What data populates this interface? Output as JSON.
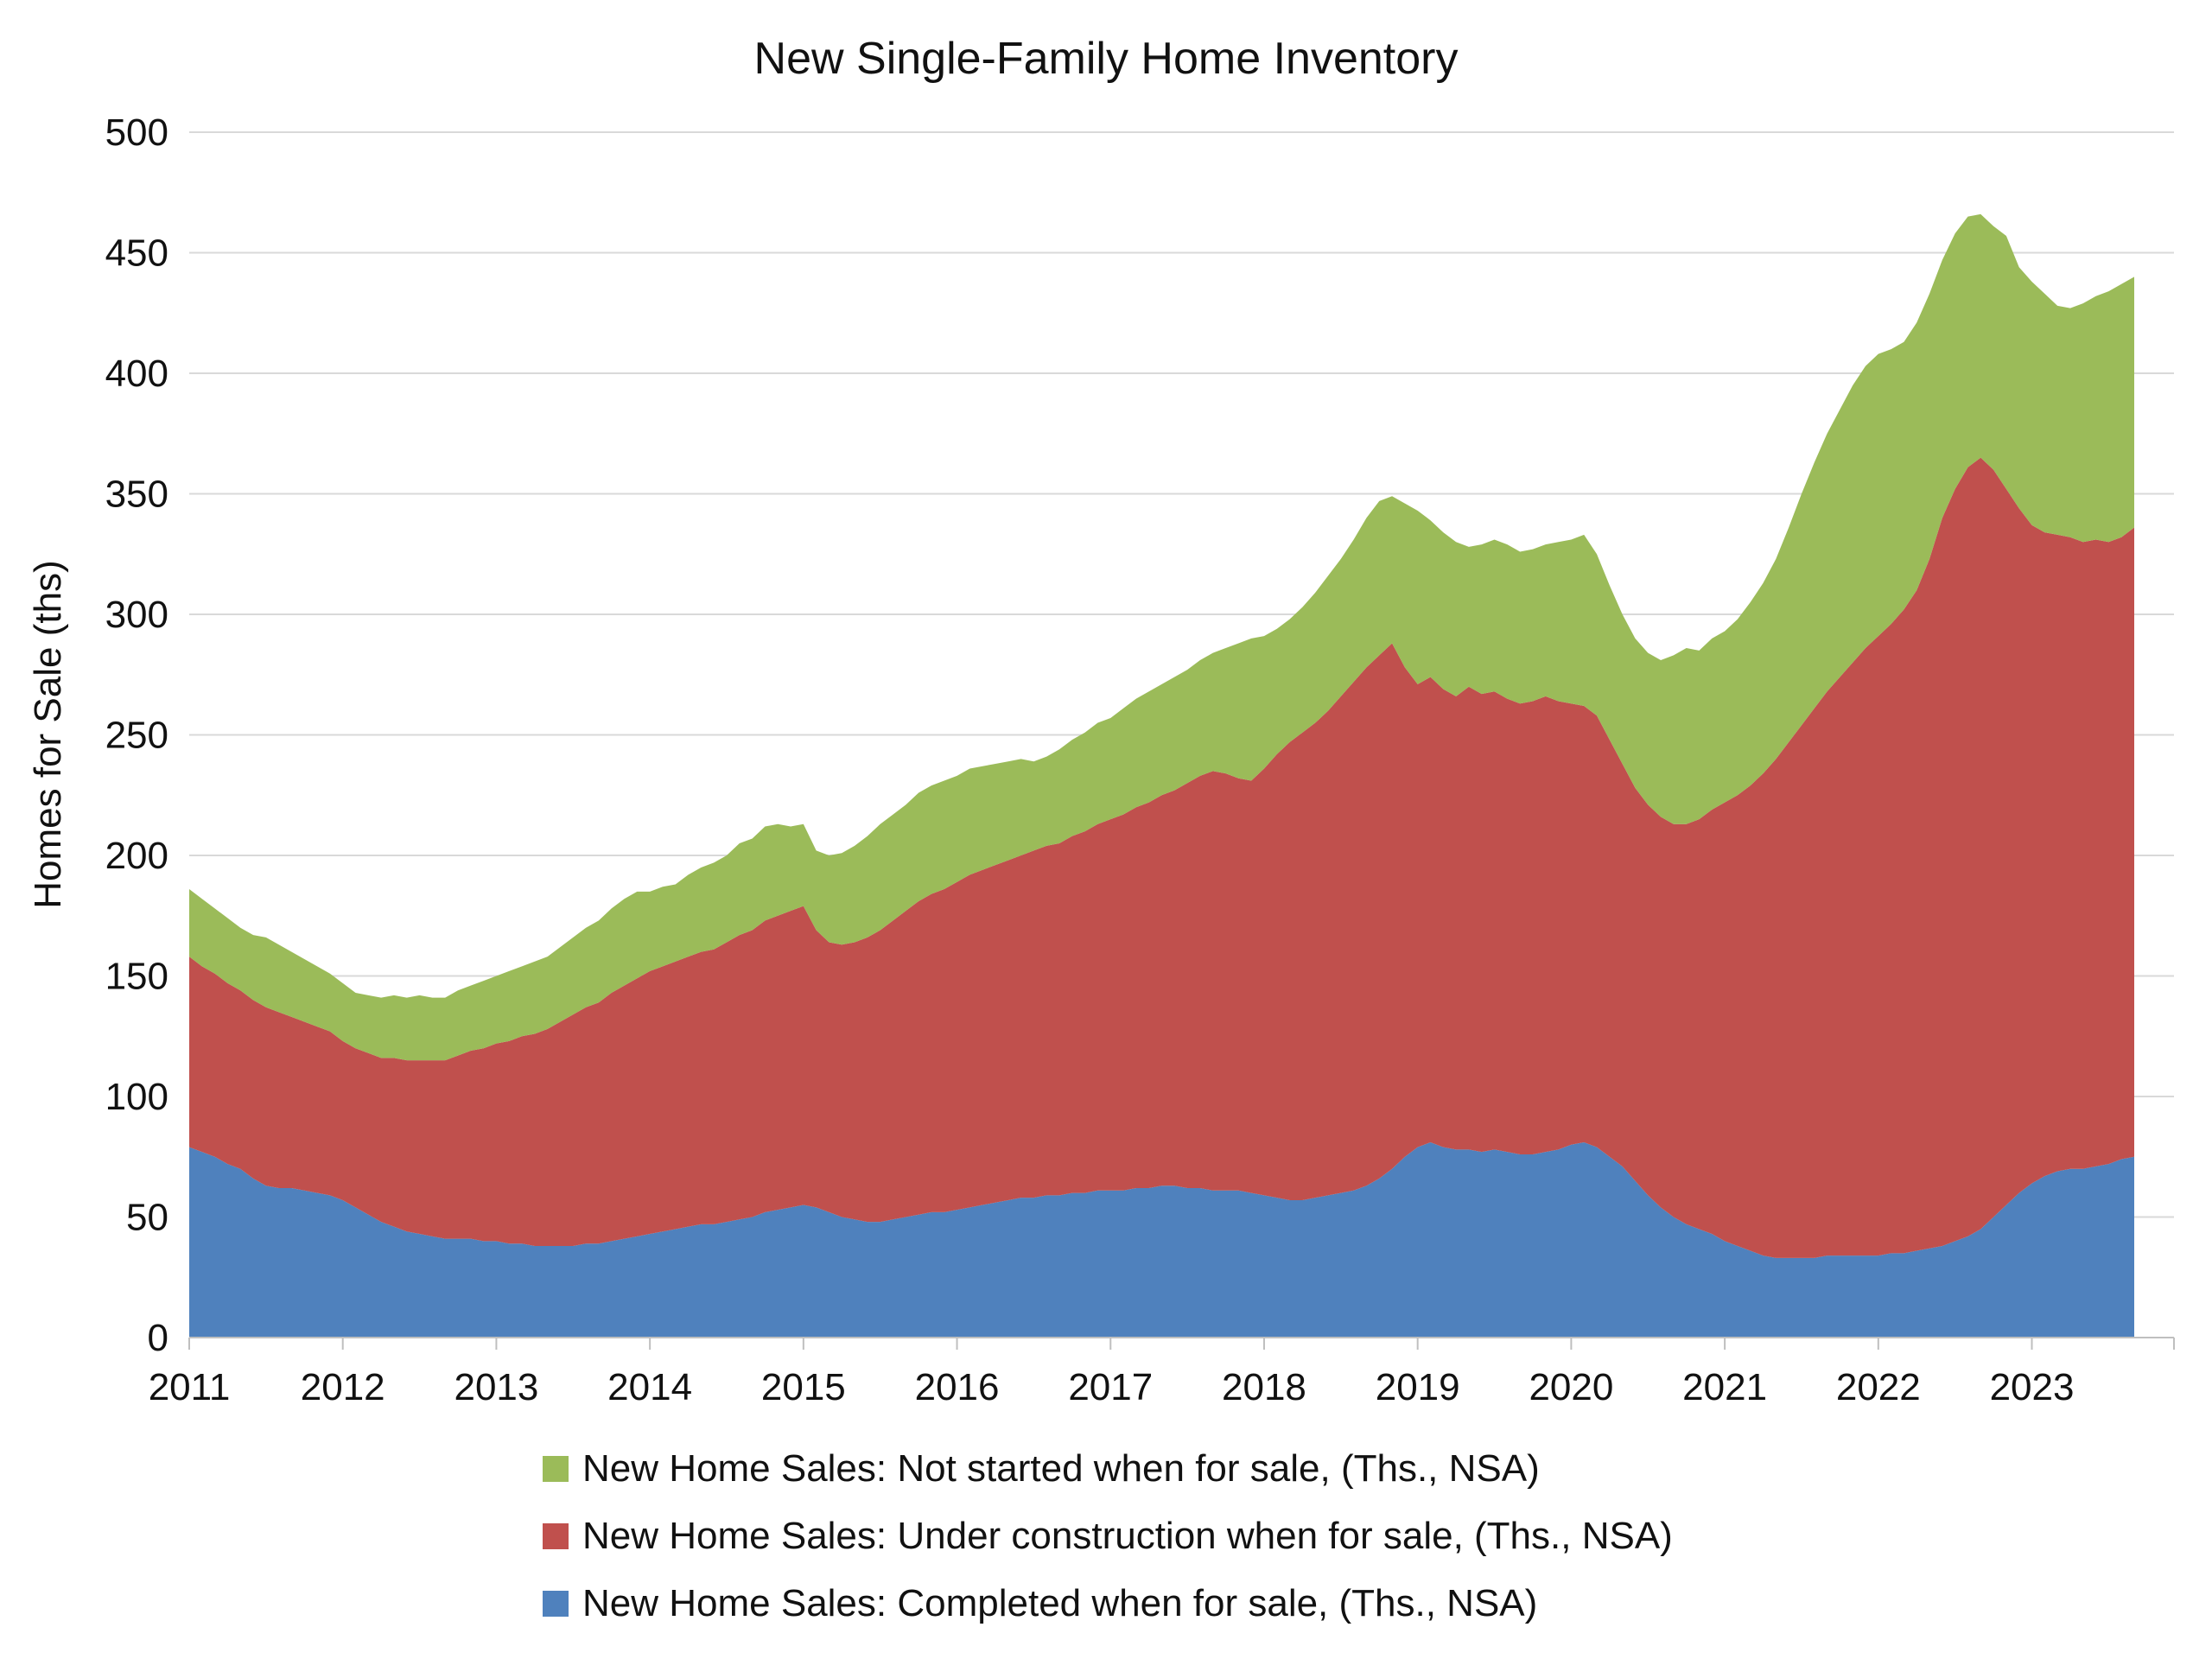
{
  "title": "New Single-Family Home Inventory",
  "y_axis_title": "Homes for Sale (ths)",
  "chart_data": {
    "type": "area",
    "stacked": true,
    "title": "New Single-Family Home Inventory",
    "ylabel": "Homes for Sale (ths)",
    "xlabel": "",
    "frequency": "monthly",
    "x_start": "2011-01",
    "x_end": "2023-09",
    "ylim": [
      0,
      500
    ],
    "yticks": [
      0,
      50,
      100,
      150,
      200,
      250,
      300,
      350,
      400,
      450,
      500
    ],
    "xticks": [
      "2011",
      "2012",
      "2013",
      "2014",
      "2015",
      "2016",
      "2017",
      "2018",
      "2019",
      "2020",
      "2021",
      "2022",
      "2023"
    ],
    "grid": "horizontal",
    "grid_color": "#D9D9D9",
    "axis_color": "#BFBFBF",
    "text_color": "#111111",
    "legend_position": "bottom-left",
    "series": [
      {
        "name": "completed",
        "label": "New Home Sales: Completed when for sale, (Ths., NSA)",
        "color": "#4F81BD",
        "values": [
          79,
          77,
          75,
          72,
          70,
          66,
          63,
          62,
          62,
          61,
          60,
          59,
          57,
          54,
          51,
          48,
          46,
          44,
          43,
          42,
          41,
          41,
          41,
          40,
          40,
          39,
          39,
          38,
          38,
          38,
          38,
          39,
          39,
          40,
          41,
          42,
          43,
          44,
          45,
          46,
          47,
          47,
          48,
          49,
          50,
          52,
          53,
          54,
          55,
          54,
          52,
          50,
          49,
          48,
          48,
          49,
          50,
          51,
          52,
          52,
          53,
          54,
          55,
          56,
          57,
          58,
          58,
          59,
          59,
          60,
          60,
          61,
          61,
          61,
          62,
          62,
          63,
          63,
          62,
          62,
          61,
          61,
          61,
          60,
          59,
          58,
          57,
          57,
          58,
          59,
          60,
          61,
          63,
          66,
          70,
          75,
          79,
          81,
          79,
          78,
          78,
          77,
          78,
          77,
          76,
          76,
          77,
          78,
          80,
          81,
          79,
          75,
          71,
          65,
          59,
          54,
          50,
          47,
          45,
          43,
          40,
          38,
          36,
          34,
          33,
          33,
          33,
          33,
          34,
          34,
          34,
          34,
          34,
          35,
          35,
          36,
          37,
          38,
          40,
          42,
          45,
          50,
          55,
          60,
          64,
          67,
          69,
          70,
          70,
          71,
          72,
          74,
          75
        ]
      },
      {
        "name": "under_construction",
        "label": "New Home Sales: Under construction when for sale, (Ths., NSA)",
        "color": "#C0504D",
        "values": [
          79,
          77,
          76,
          75,
          74,
          74,
          74,
          73,
          71,
          70,
          69,
          68,
          66,
          66,
          67,
          68,
          70,
          71,
          72,
          73,
          74,
          76,
          78,
          80,
          82,
          84,
          86,
          88,
          90,
          93,
          96,
          98,
          100,
          103,
          105,
          107,
          109,
          110,
          111,
          112,
          113,
          114,
          116,
          118,
          119,
          121,
          122,
          123,
          124,
          115,
          112,
          113,
          115,
          118,
          121,
          124,
          127,
          130,
          132,
          134,
          136,
          138,
          139,
          140,
          141,
          142,
          144,
          145,
          146,
          148,
          150,
          152,
          154,
          156,
          158,
          160,
          162,
          164,
          168,
          171,
          174,
          173,
          171,
          171,
          177,
          184,
          190,
          194,
          197,
          201,
          206,
          211,
          215,
          217,
          218,
          203,
          192,
          193,
          190,
          188,
          192,
          190,
          190,
          188,
          187,
          188,
          189,
          186,
          183,
          181,
          179,
          173,
          167,
          163,
          162,
          162,
          163,
          166,
          170,
          176,
          182,
          187,
          193,
          200,
          207,
          214,
          221,
          228,
          234,
          240,
          246,
          252,
          257,
          261,
          267,
          274,
          286,
          302,
          312,
          319,
          320,
          310,
          297,
          284,
          273,
          267,
          264,
          262,
          260,
          260,
          258,
          258,
          261
        ]
      },
      {
        "name": "not_started",
        "label": "New Home Sales: Not started when for sale, (Ths., NSA)",
        "color": "#9BBB59",
        "values": [
          28,
          28,
          27,
          27,
          26,
          27,
          29,
          28,
          27,
          26,
          25,
          24,
          24,
          23,
          24,
          25,
          26,
          26,
          27,
          26,
          26,
          27,
          27,
          28,
          28,
          29,
          29,
          30,
          30,
          31,
          32,
          33,
          34,
          35,
          36,
          36,
          33,
          33,
          32,
          34,
          35,
          36,
          36,
          38,
          38,
          39,
          38,
          35,
          34,
          33,
          36,
          38,
          40,
          42,
          44,
          44,
          44,
          45,
          45,
          45,
          44,
          44,
          43,
          42,
          41,
          40,
          37,
          37,
          39,
          40,
          41,
          42,
          42,
          44,
          45,
          46,
          46,
          47,
          47,
          48,
          49,
          52,
          56,
          59,
          55,
          52,
          51,
          52,
          54,
          56,
          57,
          59,
          62,
          64,
          61,
          68,
          72,
          65,
          65,
          64,
          58,
          62,
          63,
          64,
          63,
          63,
          63,
          66,
          68,
          71,
          67,
          64,
          62,
          62,
          63,
          65,
          70,
          73,
          70,
          71,
          71,
          73,
          76,
          79,
          83,
          89,
          96,
          102,
          107,
          111,
          115,
          117,
          117,
          114,
          111,
          111,
          110,
          107,
          106,
          104,
          101,
          101,
          105,
          100,
          101,
          99,
          95,
          95,
          99,
          101,
          104,
          105,
          104
        ]
      }
    ]
  }
}
